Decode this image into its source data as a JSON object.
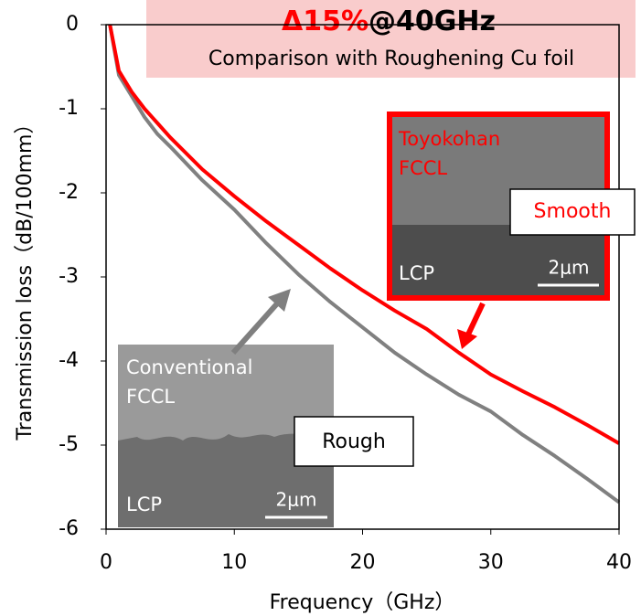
{
  "chart_data": {
    "type": "line",
    "headline_delta": "Δ15%",
    "headline_freq": "@40GHz",
    "subtitle": "Comparison with Roughening Cu foil",
    "x_label": "Frequency（GHz）",
    "y_label": "Transmission loss（dB/100mm）",
    "x": [
      0.3,
      1,
      2,
      3,
      4,
      5,
      7.5,
      10,
      12.5,
      15,
      17.5,
      20,
      22.5,
      25,
      27.5,
      30,
      32.5,
      35,
      37.5,
      40
    ],
    "series": [
      {
        "color": "#ff0000",
        "values": [
          0,
          -0.55,
          -0.8,
          -1.0,
          -1.17,
          -1.34,
          -1.72,
          -2.04,
          -2.34,
          -2.62,
          -2.9,
          -3.16,
          -3.4,
          -3.62,
          -3.9,
          -4.16,
          -4.36,
          -4.55,
          -4.76,
          -4.98
        ]
      },
      {
        "color": "#808080",
        "values": [
          0,
          -0.6,
          -0.85,
          -1.1,
          -1.3,
          -1.45,
          -1.85,
          -2.2,
          -2.6,
          -2.97,
          -3.3,
          -3.6,
          -3.9,
          -4.16,
          -4.4,
          -4.6,
          -4.88,
          -5.13,
          -5.4,
          -5.68
        ]
      }
    ],
    "xlim": [
      0,
      40
    ],
    "xticks": [
      0,
      10,
      20,
      30,
      40
    ],
    "ylim": [
      -6,
      0
    ],
    "yticks": [
      0,
      -1,
      -2,
      -3,
      -4,
      -5,
      -6
    ],
    "annotations": {
      "smooth_film_line1": "Toyokohan",
      "smooth_film_line2": "FCCL",
      "smooth_base": "LCP",
      "smooth_scale": "2μm",
      "smooth_label": "Smooth",
      "rough_film_line1": "Conventional",
      "rough_film_line2": "FCCL",
      "rough_base": "LCP",
      "rough_scale": "2μm",
      "rough_label": "Rough"
    }
  }
}
